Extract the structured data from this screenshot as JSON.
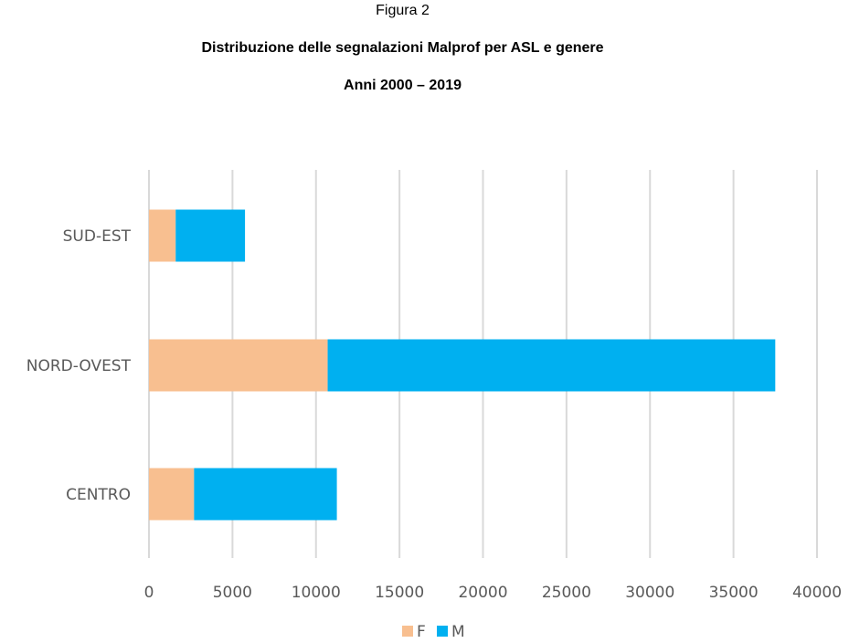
{
  "header": {
    "figure_label": "Figura 2",
    "title": "Distribuzione delle segnalazioni Malprof per ASL e genere",
    "subtitle": "Anni 2000 – 2019"
  },
  "chart_data": {
    "type": "bar",
    "orientation": "horizontal",
    "stacked": true,
    "categories": [
      "SUD-EST",
      "NORD-OVEST",
      "CENTRO"
    ],
    "series": [
      {
        "name": "F",
        "color": "#F8BF90",
        "values": [
          1600,
          10700,
          2700
        ]
      },
      {
        "name": "M",
        "color": "#00B0F0",
        "values": [
          4150,
          26800,
          8550
        ]
      }
    ],
    "xlim": [
      0,
      40000
    ],
    "x_ticks": [
      0,
      5000,
      10000,
      15000,
      20000,
      25000,
      30000,
      35000,
      40000
    ],
    "grid": true,
    "legend": "bottom",
    "title": "",
    "xlabel": "",
    "ylabel": ""
  }
}
